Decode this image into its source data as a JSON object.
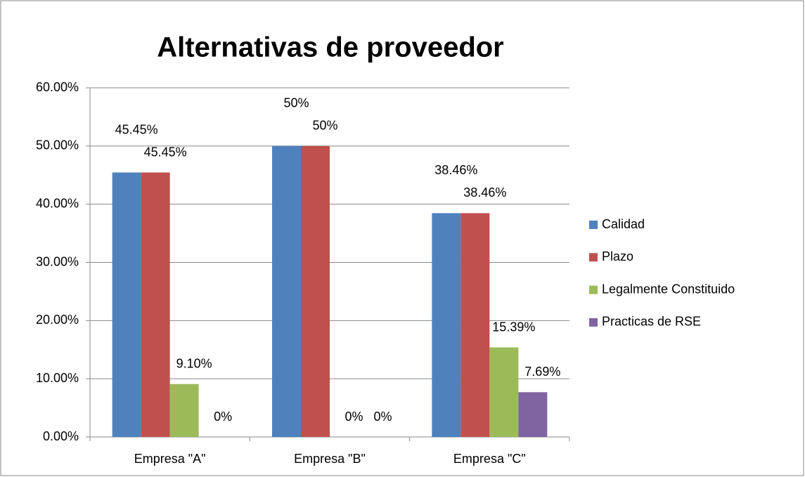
{
  "chart_data": {
    "type": "bar",
    "title": "Alternativas de proveedor",
    "categories": [
      "Empresa \"A\"",
      "Empresa \"B\"",
      "Empresa \"C\""
    ],
    "series": [
      {
        "name": "Calidad",
        "color": "#4f81bd",
        "values": [
          45.45,
          50,
          38.46
        ],
        "value_labels": [
          "45.45%",
          "50%",
          "38.46%"
        ]
      },
      {
        "name": "Plazo",
        "color": "#c0504d",
        "values": [
          45.45,
          50,
          38.46
        ],
        "value_labels": [
          "45.45%",
          "50%",
          "38.46%"
        ]
      },
      {
        "name": "Legalmente Constituido",
        "color": "#9bbb59",
        "values": [
          9.1,
          0,
          15.39
        ],
        "value_labels": [
          "9.10%",
          "0%",
          "15.39%"
        ]
      },
      {
        "name": "Practicas de RSE",
        "color": "#8064a2",
        "values": [
          0,
          0,
          7.69
        ],
        "value_labels": [
          "0%",
          "0%",
          "7.69%"
        ]
      }
    ],
    "ylim": [
      0,
      60
    ],
    "yticks": [
      {
        "value": 0,
        "label": "0.00%"
      },
      {
        "value": 10,
        "label": "10.00%"
      },
      {
        "value": 20,
        "label": "20.00%"
      },
      {
        "value": 30,
        "label": "30.00%"
      },
      {
        "value": 40,
        "label": "40.00%"
      },
      {
        "value": 50,
        "label": "50.00%"
      },
      {
        "value": 60,
        "label": "60.00%"
      }
    ],
    "grid": true,
    "legend": "right"
  }
}
